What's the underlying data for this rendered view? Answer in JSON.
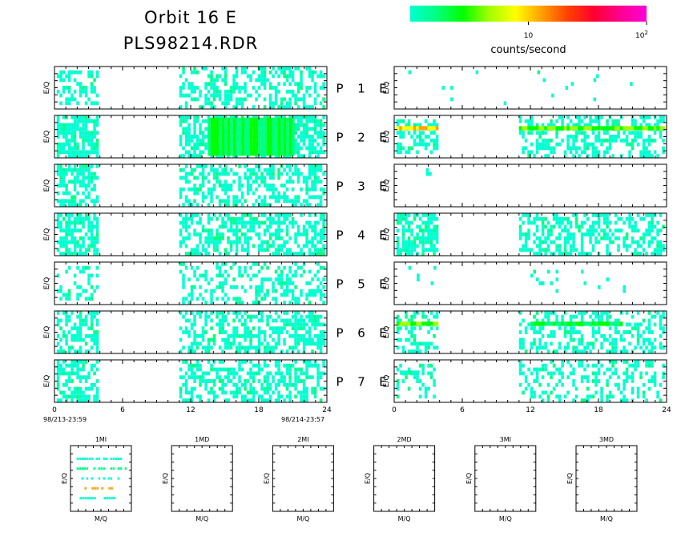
{
  "title": {
    "line1": "Orbit 16 E",
    "line2": "PLS98214.RDR"
  },
  "colorbar": {
    "label": "counts/second",
    "tick_10": "10",
    "tick_100_base": "10",
    "tick_100_exp": "2",
    "colors": [
      "#00ffd0",
      "#00ff80",
      "#00ff00",
      "#a0ff00",
      "#ffff00",
      "#ffa000",
      "#ff4000",
      "#ff0030",
      "#ff0090",
      "#ff00d8"
    ]
  },
  "chart_data": [
    {
      "type": "heatmap",
      "title": "",
      "xlabel": "",
      "ylabel": "E/Q",
      "x_ticks": [
        "0",
        "6",
        "12",
        "18",
        "24"
      ],
      "xlim": [
        0,
        24
      ],
      "x_start_label": "98/213-23:59",
      "x_end_label": "98/214-23:57",
      "panel_label_words": [
        "P",
        "E"
      ],
      "panels": [
        {
          "name": "P 1 E",
          "number": "1",
          "left": {
            "bursts": [
              {
                "x": [
                  0.2,
                  3.8
                ],
                "rows": [
                  0.1,
                  0.9
                ],
                "density": 0.45
              },
              {
                "x": [
                  11.0,
                  23.8
                ],
                "rows": [
                  0.05,
                  0.95
                ],
                "density": 0.45
              }
            ],
            "bright_lines": []
          },
          "right": {
            "bursts": [
              {
                "x": [
                  0.5,
                  23.5
                ],
                "rows": [
                  0.1,
                  0.9
                ],
                "density": 0.015
              }
            ],
            "bright_lines": []
          }
        },
        {
          "name": "P 2 E",
          "number": "2",
          "left": {
            "bursts": [
              {
                "x": [
                  0.2,
                  3.8
                ],
                "rows": [
                  0.05,
                  0.95
                ],
                "density": 0.75
              },
              {
                "x": [
                  11.0,
                  23.8
                ],
                "rows": [
                  0.05,
                  0.95
                ],
                "density": 0.7
              }
            ],
            "bright_lines": [
              {
                "x": [
                  13.5,
                  21.0
                ],
                "rows": [
                  0.05,
                  0.95
                ],
                "color_level": 2
              }
            ]
          },
          "right": {
            "bursts": [
              {
                "x": [
                  0.2,
                  3.8
                ],
                "rows": [
                  0.1,
                  0.9
                ],
                "density": 0.5
              },
              {
                "x": [
                  11.0,
                  23.8
                ],
                "rows": [
                  0.05,
                  0.95
                ],
                "density": 0.45
              }
            ],
            "bright_lines": [
              {
                "x": [
                  0.2,
                  3.8
                ],
                "rows": [
                  0.25,
                  0.35
                ],
                "color_level": 5
              },
              {
                "x": [
                  11.0,
                  23.8
                ],
                "rows": [
                  0.25,
                  0.35
                ],
                "color_level": 3
              }
            ]
          }
        },
        {
          "name": "P 3 E",
          "number": "3",
          "left": {
            "bursts": [
              {
                "x": [
                  0.2,
                  3.8
                ],
                "rows": [
                  0.05,
                  0.95
                ],
                "density": 0.6
              },
              {
                "x": [
                  11.0,
                  23.8
                ],
                "rows": [
                  0.05,
                  0.95
                ],
                "density": 0.5
              }
            ],
            "bright_lines": []
          },
          "right": {
            "bursts": [
              {
                "x": [
                  2.8,
                  3.2
                ],
                "rows": [
                  0.1,
                  0.3
                ],
                "density": 0.5
              }
            ],
            "bright_lines": []
          }
        },
        {
          "name": "P 4 E",
          "number": "4",
          "left": {
            "bursts": [
              {
                "x": [
                  0.2,
                  3.8
                ],
                "rows": [
                  0.05,
                  0.95
                ],
                "density": 0.6
              },
              {
                "x": [
                  11.0,
                  23.8
                ],
                "rows": [
                  0.05,
                  0.95
                ],
                "density": 0.55
              }
            ],
            "bright_lines": []
          },
          "right": {
            "bursts": [
              {
                "x": [
                  0.2,
                  3.8
                ],
                "rows": [
                  0.05,
                  0.95
                ],
                "density": 0.65
              },
              {
                "x": [
                  11.0,
                  23.8
                ],
                "rows": [
                  0.05,
                  0.95
                ],
                "density": 0.5
              }
            ],
            "bright_lines": []
          }
        },
        {
          "name": "P 5 E",
          "number": "5",
          "left": {
            "bursts": [
              {
                "x": [
                  0.2,
                  3.8
                ],
                "rows": [
                  0.1,
                  0.9
                ],
                "density": 0.3
              },
              {
                "x": [
                  11.0,
                  23.8
                ],
                "rows": [
                  0.05,
                  0.95
                ],
                "density": 0.35
              }
            ],
            "bright_lines": []
          },
          "right": {
            "bursts": [
              {
                "x": [
                  0.5,
                  3.8
                ],
                "rows": [
                  0.1,
                  0.5
                ],
                "density": 0.1
              },
              {
                "x": [
                  12.0,
                  20.5
                ],
                "rows": [
                  0.2,
                  0.7
                ],
                "density": 0.05
              }
            ],
            "bright_lines": []
          }
        },
        {
          "name": "P 6 E",
          "number": "6",
          "left": {
            "bursts": [
              {
                "x": [
                  0.2,
                  3.8
                ],
                "rows": [
                  0.05,
                  0.95
                ],
                "density": 0.55
              },
              {
                "x": [
                  11.0,
                  23.8
                ],
                "rows": [
                  0.05,
                  0.95
                ],
                "density": 0.5
              }
            ],
            "bright_lines": []
          },
          "right": {
            "bursts": [
              {
                "x": [
                  0.2,
                  3.8
                ],
                "rows": [
                  0.05,
                  0.95
                ],
                "density": 0.45
              },
              {
                "x": [
                  11.0,
                  23.8
                ],
                "rows": [
                  0.05,
                  0.95
                ],
                "density": 0.4
              }
            ],
            "bright_lines": [
              {
                "x": [
                  0.2,
                  3.8
                ],
                "rows": [
                  0.25,
                  0.35
                ],
                "color_level": 3
              },
              {
                "x": [
                  12.0,
                  20.0
                ],
                "rows": [
                  0.25,
                  0.35
                ],
                "color_level": 2
              }
            ]
          }
        },
        {
          "name": "P 7 E",
          "number": "7",
          "left": {
            "bursts": [
              {
                "x": [
                  0.2,
                  3.8
                ],
                "rows": [
                  0.05,
                  0.95
                ],
                "density": 0.6
              },
              {
                "x": [
                  11.0,
                  23.8
                ],
                "rows": [
                  0.05,
                  0.95
                ],
                "density": 0.5
              }
            ],
            "bright_lines": []
          },
          "right": {
            "bursts": [
              {
                "x": [
                  0.2,
                  3.8
                ],
                "rows": [
                  0.1,
                  0.9
                ],
                "density": 0.3
              },
              {
                "x": [
                  11.0,
                  23.8
                ],
                "rows": [
                  0.05,
                  0.95
                ],
                "density": 0.35
              }
            ],
            "bright_lines": [
              {
                "x": [
                  0.5,
                  2.0
                ],
                "rows": [
                  0.25,
                  0.35
                ],
                "color_level": 1
              }
            ]
          }
        }
      ]
    },
    {
      "type": "heatmap",
      "title": "",
      "xlabel": "M/Q",
      "ylabel": "E/Q",
      "panels": [
        {
          "name": "1MI",
          "rows": [
            {
              "y": 0.2,
              "x": [
                0.1,
                0.9
              ],
              "density": 0.6,
              "color_level": 0
            },
            {
              "y": 0.35,
              "x": [
                0.1,
                0.9
              ],
              "density": 0.8,
              "color_level": 1
            },
            {
              "y": 0.5,
              "x": [
                0.1,
                0.9
              ],
              "density": 0.5,
              "color_level": 0
            },
            {
              "y": 0.65,
              "x": [
                0.15,
                0.85
              ],
              "density": 0.3,
              "color_level": 5
            },
            {
              "y": 0.8,
              "x": [
                0.15,
                0.85
              ],
              "density": 0.7,
              "color_level": 0
            }
          ]
        },
        {
          "name": "1MD",
          "rows": []
        },
        {
          "name": "2MI",
          "rows": []
        },
        {
          "name": "2MD",
          "rows": []
        },
        {
          "name": "3MI",
          "rows": []
        },
        {
          "name": "3MD",
          "rows": []
        }
      ]
    }
  ]
}
